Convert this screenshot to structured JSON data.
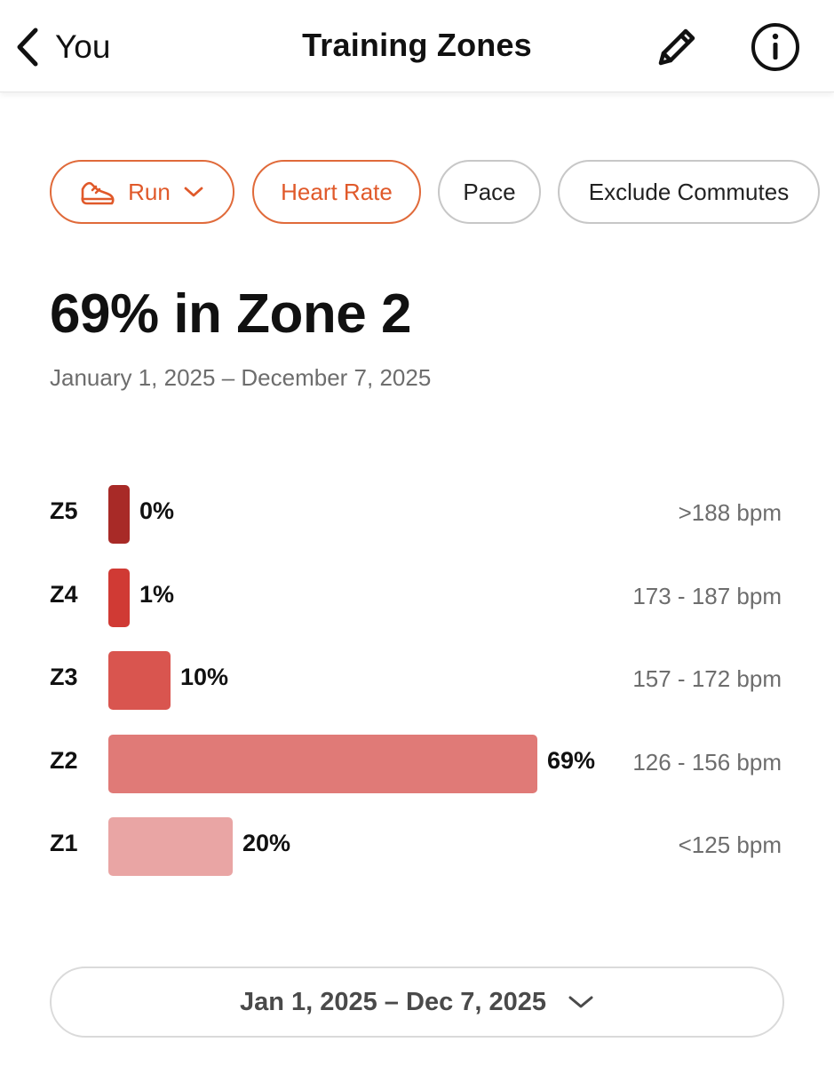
{
  "header": {
    "back_label": "You",
    "title": "Training Zones"
  },
  "filters": {
    "sport": "Run",
    "metric": "Heart Rate",
    "pace": "Pace",
    "exclude": "Exclude Commutes"
  },
  "summary": {
    "headline": "69% in Zone 2",
    "date_range": "January 1, 2025 – December 7, 2025"
  },
  "zones": [
    {
      "label": "Z5",
      "percent": 0,
      "percent_text": "0%",
      "range": ">188 bpm",
      "color": "#a82a27"
    },
    {
      "label": "Z4",
      "percent": 1,
      "percent_text": "1%",
      "range": "173 - 187 bpm",
      "color": "#d03a34"
    },
    {
      "label": "Z3",
      "percent": 10,
      "percent_text": "10%",
      "range": "157 - 172 bpm",
      "color": "#d9554f"
    },
    {
      "label": "Z2",
      "percent": 69,
      "percent_text": "69%",
      "range": "126 - 156 bpm",
      "color": "#e07a77"
    },
    {
      "label": "Z1",
      "percent": 20,
      "percent_text": "20%",
      "range": "<125 bpm",
      "color": "#e9a5a4"
    }
  ],
  "date_selector": {
    "label": "Jan 1, 2025 – Dec 7, 2025"
  },
  "colors": {
    "accent": "#e0592a"
  },
  "icons": {
    "back": "chevron-left-icon",
    "edit": "pencil-icon",
    "info": "info-icon",
    "sport": "shoe-icon",
    "dropdown": "chevron-down-icon"
  }
}
